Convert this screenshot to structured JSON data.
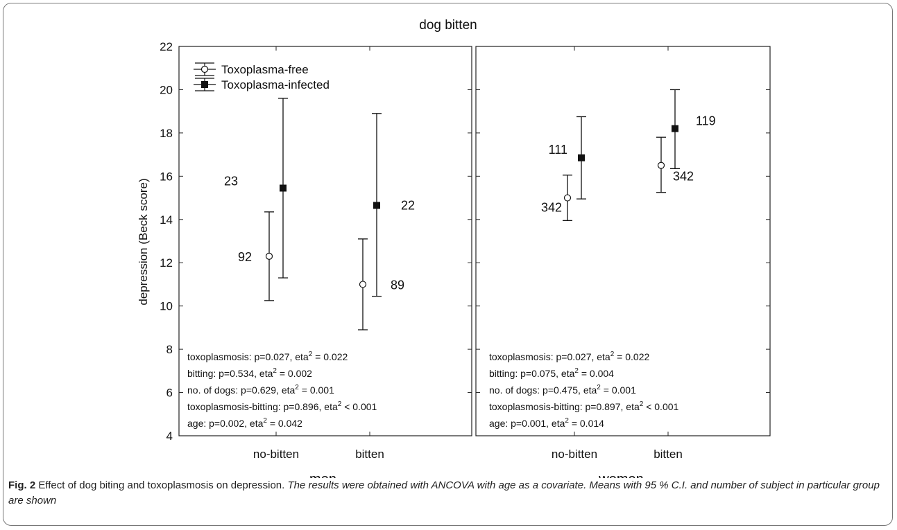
{
  "figure": {
    "caption_label": "Fig. 2",
    "caption_title": "Effect of dog biting and toxoplasmosis on depression.",
    "caption_text": "The results were obtained with ANCOVA with age as a covariate. Means with 95 % C.I. and number of subject in particular group are shown"
  },
  "chart_data": {
    "type": "scatter",
    "title": "dog bitten",
    "ylabel": "depression (Beck score)",
    "ylim": [
      4,
      22
    ],
    "yticks": [
      4,
      6,
      8,
      10,
      12,
      14,
      16,
      18,
      20,
      22
    ],
    "categories": [
      "no-bitten",
      "bitten"
    ],
    "legend": {
      "position": "top-left",
      "entries": [
        {
          "name": "Toxoplasma-free",
          "marker": "open-circle"
        },
        {
          "name": "Toxoplasma-infected",
          "marker": "filled-square"
        }
      ]
    },
    "panels": [
      {
        "name": "men",
        "series": [
          {
            "name": "Toxoplasma-free",
            "points": [
              {
                "category": "no-bitten",
                "mean": 12.3,
                "lower": 10.25,
                "upper": 14.35,
                "n": "92"
              },
              {
                "category": "bitten",
                "mean": 11.0,
                "lower": 8.9,
                "upper": 13.1,
                "n": "89"
              }
            ]
          },
          {
            "name": "Toxoplasma-infected",
            "points": [
              {
                "category": "no-bitten",
                "mean": 15.45,
                "lower": 11.3,
                "upper": 19.6,
                "n": "23"
              },
              {
                "category": "bitten",
                "mean": 14.65,
                "lower": 10.45,
                "upper": 18.9,
                "n": "22"
              }
            ]
          }
        ],
        "stats": [
          {
            "text": "toxoplasmosis: p=0.027, eta",
            "sup": "2",
            "tail": " = 0.022"
          },
          {
            "text": "bitting: p=0.534, eta",
            "sup": "2",
            "tail": " = 0.002"
          },
          {
            "text": "no. of dogs: p=0.629, eta",
            "sup": "2",
            "tail": " = 0.001"
          },
          {
            "text": "toxoplasmosis-bitting: p=0.896, eta",
            "sup": "2",
            "tail": " < 0.001"
          },
          {
            "text": "age: p=0.002, eta",
            "sup": "2",
            "tail": " = 0.042"
          }
        ]
      },
      {
        "name": "women",
        "series": [
          {
            "name": "Toxoplasma-free",
            "points": [
              {
                "category": "no-bitten",
                "mean": 15.0,
                "lower": 13.95,
                "upper": 16.05,
                "n": "342"
              },
              {
                "category": "bitten",
                "mean": 16.5,
                "lower": 15.25,
                "upper": 17.8,
                "n": "342"
              }
            ]
          },
          {
            "name": "Toxoplasma-infected",
            "points": [
              {
                "category": "no-bitten",
                "mean": 16.85,
                "lower": 14.95,
                "upper": 18.75,
                "n": "111"
              },
              {
                "category": "bitten",
                "mean": 18.2,
                "lower": 16.35,
                "upper": 20.0,
                "n": "119"
              }
            ]
          }
        ],
        "stats": [
          {
            "text": "toxoplasmosis: p=0.027, eta",
            "sup": "2",
            "tail": " = 0.022"
          },
          {
            "text": "bitting: p=0.075, eta",
            "sup": "2",
            "tail": " = 0.004"
          },
          {
            "text": "no. of dogs: p=0.475, eta",
            "sup": "2",
            "tail": " = 0.001"
          },
          {
            "text": "toxoplasmosis-bitting: p=0.897, eta",
            "sup": "2",
            "tail": " < 0.001"
          },
          {
            "text": "age: p=0.001, eta",
            "sup": "2",
            "tail": " = 0.014"
          }
        ]
      }
    ]
  }
}
